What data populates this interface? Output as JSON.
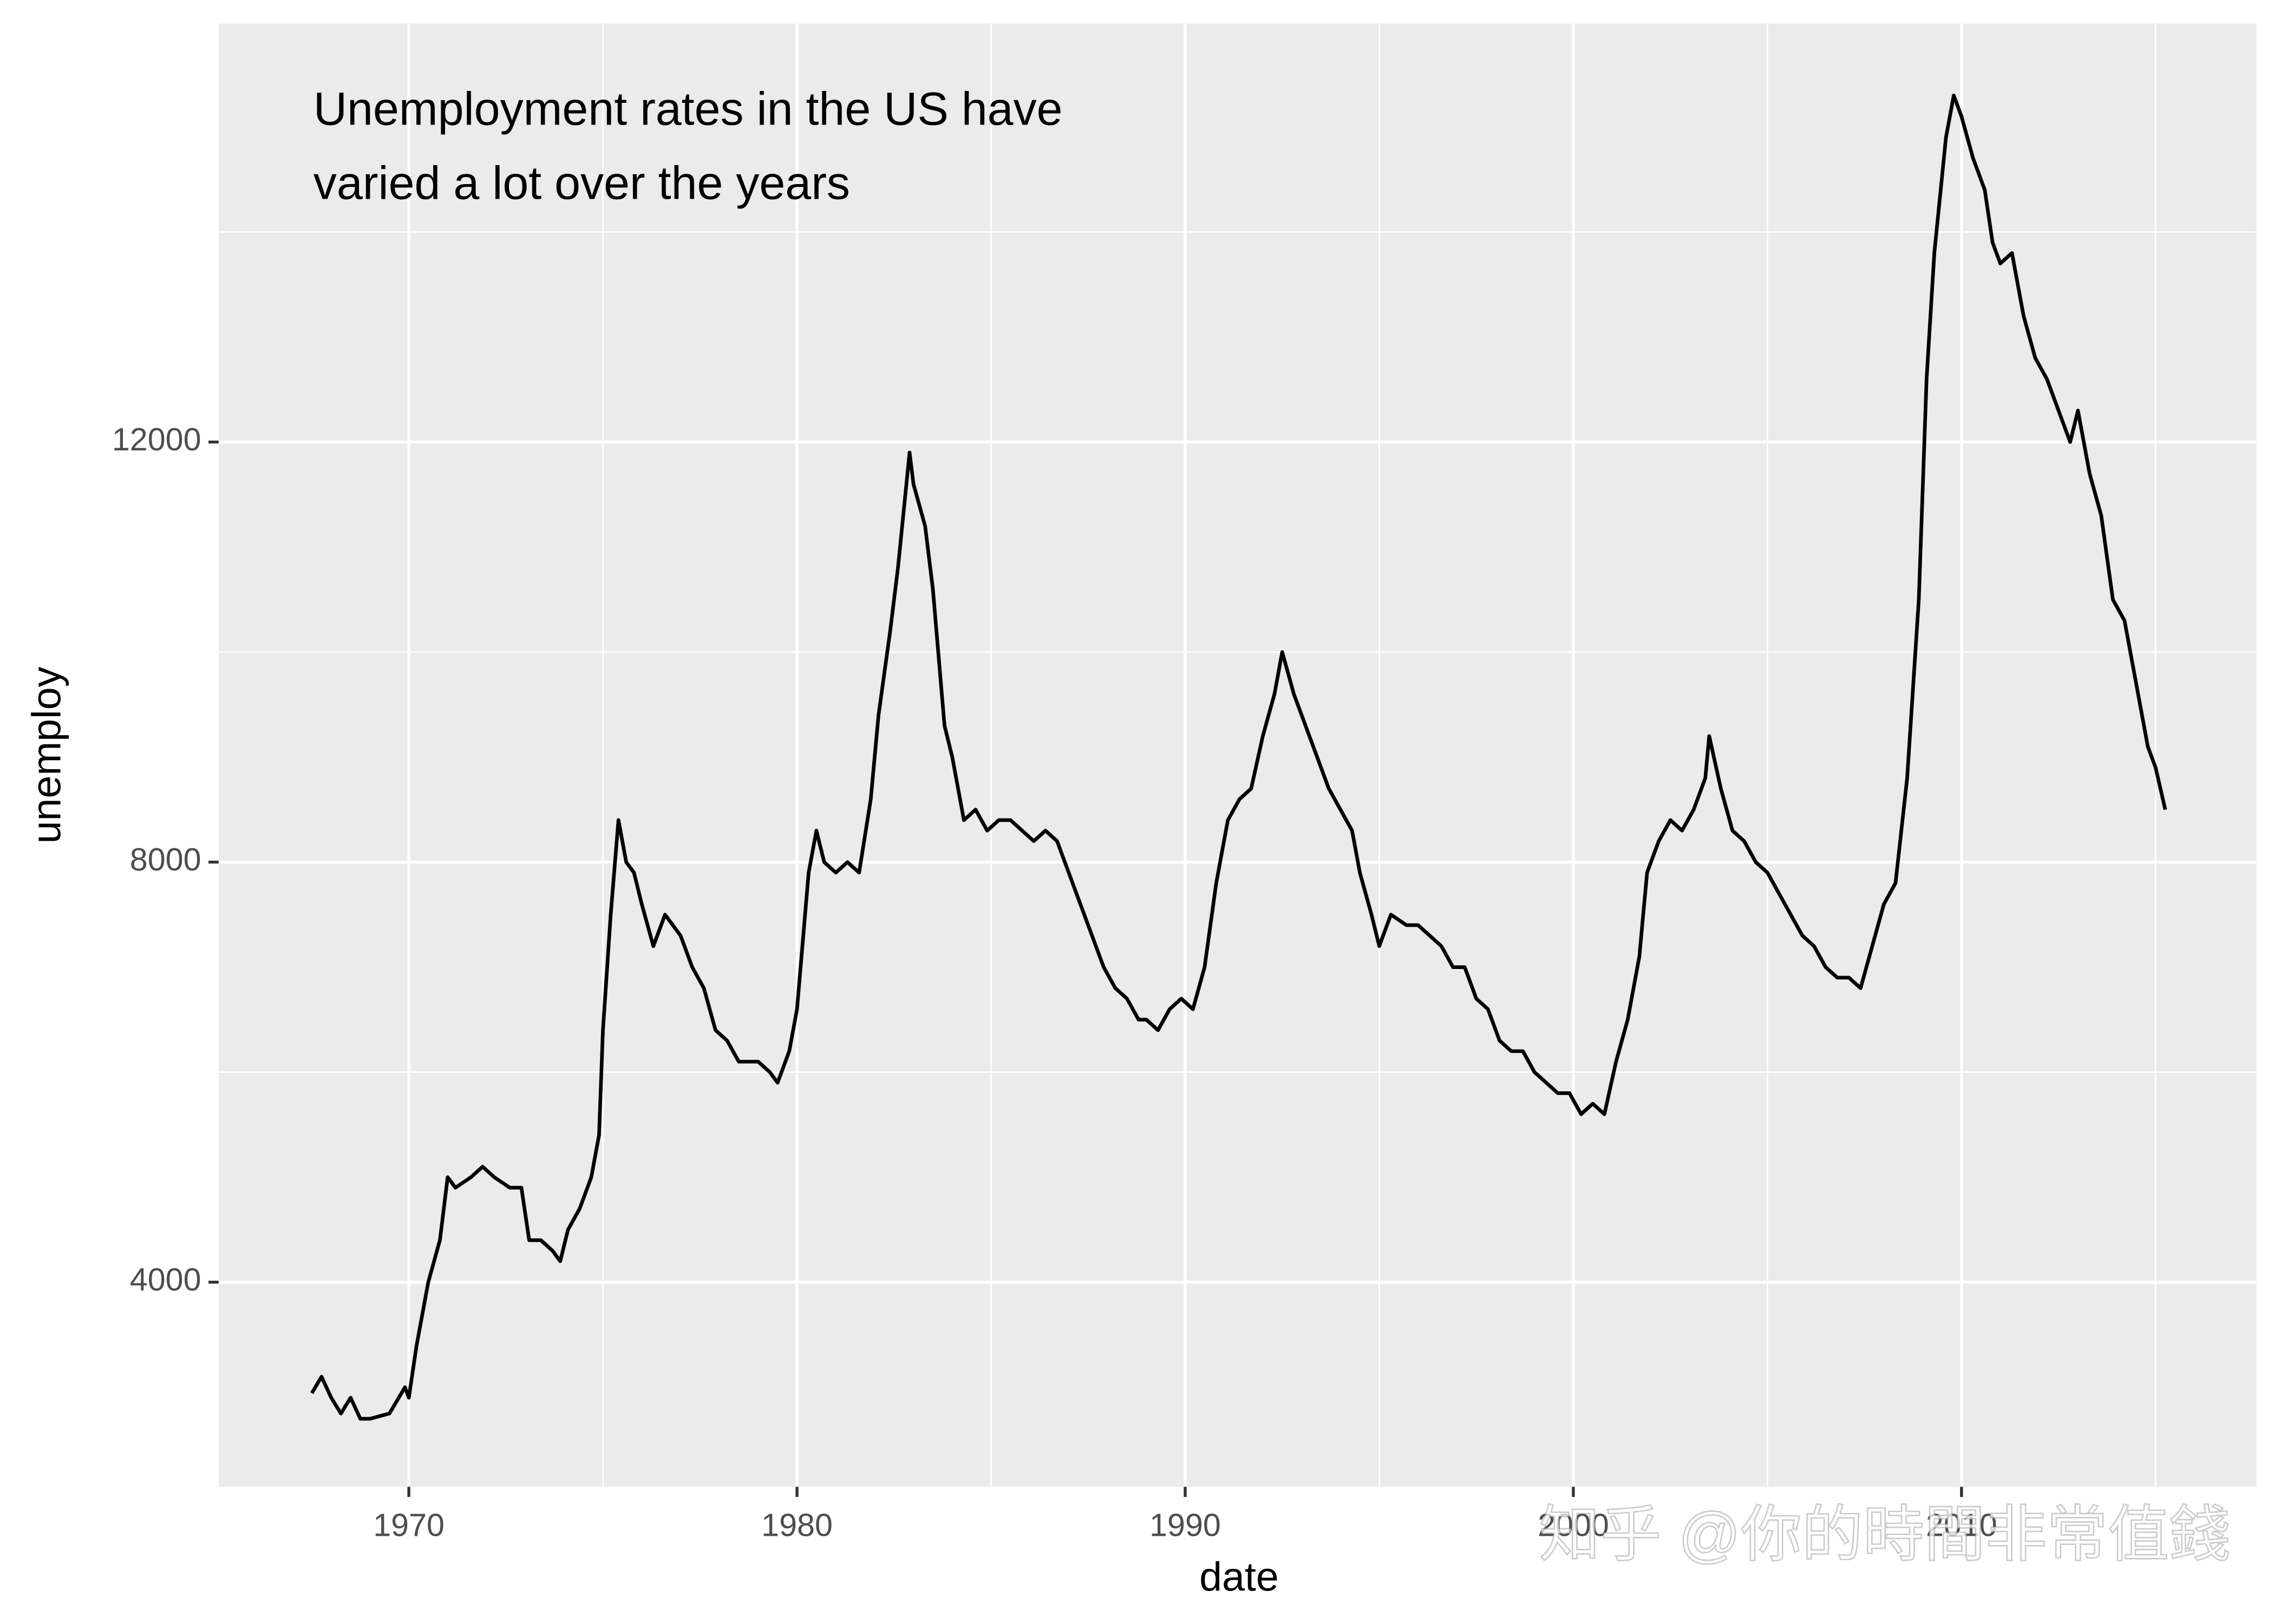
{
  "chart_data": {
    "type": "line",
    "annotation": [
      "Unemployment rates in the US have",
      "varied a lot over the years"
    ],
    "x_label": "date",
    "y_label": "unemploy",
    "watermark": "知乎 @你的時間非常值錢",
    "xlim": [
      1965.1,
      2017.6
    ],
    "ylim": [
      2052,
      15985
    ],
    "xticks": [
      1970,
      1980,
      1990,
      2000,
      2010
    ],
    "yticks": [
      4000,
      8000,
      12000
    ],
    "x_minor_grid": [
      1975,
      1985,
      1995,
      2005,
      2015
    ],
    "y_minor_grid": [
      6000,
      10000,
      14000
    ],
    "grid": true,
    "panel_color": "#ebebeb",
    "grid_color": "#ffffff",
    "series": [
      {
        "name": "unemploy",
        "color": "#000000",
        "x": [
          1967.5,
          1967.75,
          1968.0,
          1968.25,
          1968.5,
          1968.75,
          1969.0,
          1969.5,
          1969.9,
          1970.0,
          1970.2,
          1970.5,
          1970.8,
          1971.0,
          1971.2,
          1971.6,
          1971.9,
          1972.2,
          1972.6,
          1972.9,
          1973.1,
          1973.4,
          1973.7,
          1973.9,
          1974.1,
          1974.4,
          1974.7,
          1974.9,
          1975.0,
          1975.2,
          1975.4,
          1975.6,
          1975.8,
          1976.0,
          1976.3,
          1976.6,
          1976.8,
          1977.0,
          1977.3,
          1977.6,
          1977.9,
          1978.2,
          1978.5,
          1978.8,
          1979.0,
          1979.3,
          1979.5,
          1979.8,
          1980.0,
          1980.3,
          1980.5,
          1980.7,
          1981.0,
          1981.3,
          1981.6,
          1981.9,
          1982.1,
          1982.4,
          1982.6,
          1982.9,
          1983.0,
          1983.3,
          1983.5,
          1983.8,
          1984.0,
          1984.3,
          1984.6,
          1984.9,
          1985.2,
          1985.5,
          1985.8,
          1986.1,
          1986.4,
          1986.7,
          1987.0,
          1987.3,
          1987.6,
          1987.9,
          1988.2,
          1988.5,
          1988.8,
          1989.0,
          1989.3,
          1989.6,
          1989.9,
          1990.2,
          1990.5,
          1990.8,
          1991.1,
          1991.4,
          1991.7,
          1992.0,
          1992.3,
          1992.5,
          1992.8,
          1993.1,
          1993.4,
          1993.7,
          1994.0,
          1994.3,
          1994.5,
          1994.8,
          1995.0,
          1995.3,
          1995.7,
          1996.0,
          1996.3,
          1996.6,
          1996.9,
          1997.2,
          1997.5,
          1997.8,
          1998.1,
          1998.4,
          1998.7,
          1999.0,
          1999.3,
          1999.6,
          1999.9,
          2000.2,
          2000.5,
          2000.8,
          2001.1,
          2001.4,
          2001.7,
          2001.9,
          2002.2,
          2002.5,
          2002.8,
          2003.1,
          2003.4,
          2003.5,
          2003.8,
          2004.1,
          2004.4,
          2004.7,
          2005.0,
          2005.3,
          2005.6,
          2005.9,
          2006.2,
          2006.5,
          2006.8,
          2007.1,
          2007.4,
          2007.7,
          2008.0,
          2008.3,
          2008.6,
          2008.9,
          2009.1,
          2009.3,
          2009.6,
          2009.8,
          2010.0,
          2010.3,
          2010.6,
          2010.8,
          2011.0,
          2011.3,
          2011.6,
          2011.9,
          2012.2,
          2012.5,
          2012.8,
          2013.0,
          2013.3,
          2013.6,
          2013.9,
          2014.2,
          2014.5,
          2014.8,
          2015.0,
          2015.25
        ],
        "values": [
          2944,
          3100,
          2900,
          2750,
          2900,
          2700,
          2700,
          2750,
          3000,
          2900,
          3400,
          4000,
          4400,
          5000,
          4900,
          5000,
          5100,
          5000,
          4900,
          4900,
          4400,
          4400,
          4300,
          4200,
          4500,
          4700,
          5000,
          5400,
          6400,
          7500,
          8400,
          8000,
          7900,
          7600,
          7200,
          7500,
          7400,
          7300,
          7000,
          6800,
          6400,
          6300,
          6100,
          6100,
          6100,
          6000,
          5900,
          6200,
          6600,
          7900,
          8300,
          8000,
          7900,
          8000,
          7900,
          8600,
          9400,
          10200,
          10800,
          11900,
          11600,
          11200,
          10600,
          9300,
          9000,
          8400,
          8500,
          8300,
          8400,
          8400,
          8300,
          8200,
          8300,
          8200,
          7900,
          7600,
          7300,
          7000,
          6800,
          6700,
          6500,
          6500,
          6400,
          6600,
          6700,
          6600,
          7000,
          7800,
          8400,
          8600,
          8700,
          9200,
          9600,
          10000,
          9600,
          9300,
          9000,
          8700,
          8500,
          8300,
          7900,
          7500,
          7200,
          7500,
          7400,
          7400,
          7300,
          7200,
          7000,
          7000,
          6700,
          6600,
          6300,
          6200,
          6200,
          6000,
          5900,
          5800,
          5800,
          5600,
          5700,
          5600,
          6100,
          6500,
          7100,
          7900,
          8200,
          8400,
          8300,
          8500,
          8800,
          9200,
          8700,
          8300,
          8200,
          8000,
          7900,
          7700,
          7500,
          7300,
          7200,
          7000,
          6900,
          6900,
          6800,
          7200,
          7600,
          7800,
          8800,
          10500,
          12600,
          13800,
          14900,
          15300,
          15100,
          14700,
          14400,
          13900,
          13700,
          13800,
          13200,
          12800,
          12600,
          12300,
          12000,
          12300,
          11700,
          11300,
          10500,
          10300,
          9700,
          9100,
          8900,
          8500
        ]
      }
    ]
  }
}
